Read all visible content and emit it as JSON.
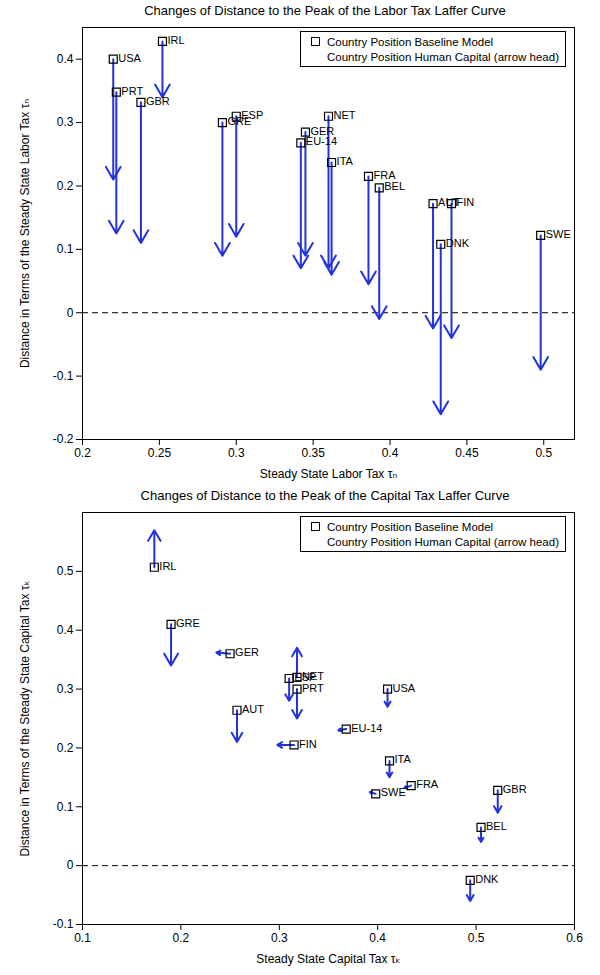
{
  "chart_data": [
    {
      "type": "scatter",
      "title": "Changes of Distance to the Peak of the Labor Tax Laffer Curve",
      "x_label": "Steady State Labor Tax τₙ",
      "y_label": "Distance in Terms of the Steady State Labor Tax τₙ",
      "xlim": [
        0.2,
        0.52
      ],
      "ylim": [
        -0.2,
        0.45
      ],
      "xticks": [
        0.2,
        0.25,
        0.3,
        0.35,
        0.4,
        0.45,
        0.5
      ],
      "yticks": [
        -0.2,
        -0.1,
        0,
        0.1,
        0.2,
        0.3,
        0.4
      ],
      "grid": false,
      "legend": "top-right",
      "reference_line": {
        "y": 0,
        "line_style": "dashed"
      },
      "series": [
        {
          "name": "Country Position Baseline Model",
          "marker": "square",
          "color": "#000000"
        },
        {
          "name": "Country Position Human Capital (arrow head)",
          "marker": "arrow",
          "color": "#2233dd"
        }
      ],
      "points": [
        {
          "label": "USA",
          "x": 0.22,
          "y": 0.4,
          "x_end": 0.22,
          "y_end": 0.21
        },
        {
          "label": "PRT",
          "x": 0.222,
          "y": 0.348,
          "x_end": 0.222,
          "y_end": 0.125
        },
        {
          "label": "GBR",
          "x": 0.238,
          "y": 0.332,
          "x_end": 0.238,
          "y_end": 0.11
        },
        {
          "label": "IRL",
          "x": 0.252,
          "y": 0.428,
          "x_end": 0.252,
          "y_end": 0.34
        },
        {
          "label": "GRE",
          "x": 0.291,
          "y": 0.3,
          "x_end": 0.291,
          "y_end": 0.09
        },
        {
          "label": "ESP",
          "x": 0.3,
          "y": 0.31,
          "x_end": 0.3,
          "y_end": 0.12
        },
        {
          "label": "EU-14",
          "x": 0.342,
          "y": 0.268,
          "x_end": 0.342,
          "y_end": 0.07
        },
        {
          "label": "GER",
          "x": 0.345,
          "y": 0.285,
          "x_end": 0.345,
          "y_end": 0.09
        },
        {
          "label": "NET",
          "x": 0.36,
          "y": 0.31,
          "x_end": 0.36,
          "y_end": 0.07
        },
        {
          "label": "ITA",
          "x": 0.362,
          "y": 0.237,
          "x_end": 0.362,
          "y_end": 0.06
        },
        {
          "label": "FRA",
          "x": 0.386,
          "y": 0.215,
          "x_end": 0.386,
          "y_end": 0.045
        },
        {
          "label": "BEL",
          "x": 0.393,
          "y": 0.197,
          "x_end": 0.393,
          "y_end": -0.01
        },
        {
          "label": "AUT",
          "x": 0.428,
          "y": 0.172,
          "x_end": 0.428,
          "y_end": -0.025
        },
        {
          "label": "DNK",
          "x": 0.433,
          "y": 0.108,
          "x_end": 0.433,
          "y_end": -0.16
        },
        {
          "label": "FIN",
          "x": 0.44,
          "y": 0.172,
          "x_end": 0.44,
          "y_end": -0.04
        },
        {
          "label": "SWE",
          "x": 0.498,
          "y": 0.122,
          "x_end": 0.498,
          "y_end": -0.09
        }
      ]
    },
    {
      "type": "scatter",
      "title": "Changes of Distance to the Peak of the Capital Tax Laffer Curve",
      "x_label": "Steady State Capital Tax τₖ",
      "y_label": "Distance in Terms of the Steady State Capital Tax τₖ",
      "xlim": [
        0.1,
        0.6
      ],
      "ylim": [
        -0.1,
        0.6
      ],
      "xticks": [
        0.1,
        0.2,
        0.3,
        0.4,
        0.5,
        0.6
      ],
      "yticks": [
        -0.1,
        0,
        0.1,
        0.2,
        0.3,
        0.4,
        0.5
      ],
      "grid": false,
      "legend": "top-right",
      "reference_line": {
        "y": 0,
        "line_style": "dashed"
      },
      "series": [
        {
          "name": "Country Position Baseline Model",
          "marker": "square",
          "color": "#000000"
        },
        {
          "name": "Country Position Human Capital (arrow head)",
          "marker": "arrow",
          "color": "#2233dd"
        }
      ],
      "points": [
        {
          "label": "IRL",
          "x": 0.173,
          "y": 0.507,
          "x_end": 0.173,
          "y_end": 0.57
        },
        {
          "label": "GRE",
          "x": 0.19,
          "y": 0.41,
          "x_end": 0.19,
          "y_end": 0.34
        },
        {
          "label": "GER",
          "x": 0.25,
          "y": 0.36,
          "x_end": 0.236,
          "y_end": 0.362
        },
        {
          "label": "AUT",
          "x": 0.257,
          "y": 0.264,
          "x_end": 0.257,
          "y_end": 0.21
        },
        {
          "label": "ESP",
          "x": 0.31,
          "y": 0.318,
          "x_end": 0.31,
          "y_end": 0.28
        },
        {
          "label": "NET",
          "x": 0.318,
          "y": 0.32,
          "x_end": 0.318,
          "y_end": 0.37
        },
        {
          "label": "PRT",
          "x": 0.318,
          "y": 0.3,
          "x_end": 0.318,
          "y_end": 0.25
        },
        {
          "label": "FIN",
          "x": 0.315,
          "y": 0.205,
          "x_end": 0.298,
          "y_end": 0.205
        },
        {
          "label": "EU-14",
          "x": 0.368,
          "y": 0.232,
          "x_end": 0.36,
          "y_end": 0.23
        },
        {
          "label": "USA",
          "x": 0.41,
          "y": 0.3,
          "x_end": 0.41,
          "y_end": 0.27
        },
        {
          "label": "ITA",
          "x": 0.412,
          "y": 0.178,
          "x_end": 0.412,
          "y_end": 0.15
        },
        {
          "label": "SWE",
          "x": 0.398,
          "y": 0.122,
          "x_end": 0.392,
          "y_end": 0.125
        },
        {
          "label": "FRA",
          "x": 0.434,
          "y": 0.136,
          "x_end": 0.427,
          "y_end": 0.132
        },
        {
          "label": "GBR",
          "x": 0.522,
          "y": 0.128,
          "x_end": 0.522,
          "y_end": 0.09
        },
        {
          "label": "BEL",
          "x": 0.505,
          "y": 0.065,
          "x_end": 0.505,
          "y_end": 0.04
        },
        {
          "label": "DNK",
          "x": 0.494,
          "y": -0.025,
          "x_end": 0.494,
          "y_end": -0.06
        }
      ]
    }
  ]
}
